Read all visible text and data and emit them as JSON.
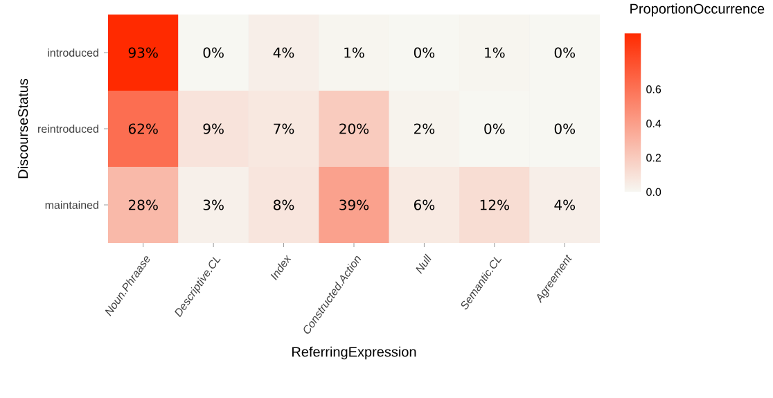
{
  "chart_data": {
    "type": "heatmap",
    "xlabel": "ReferringExpression",
    "ylabel": "DiscourseStatus",
    "clabel": "ProportionOccurrence",
    "categories": [
      "Noun.Phraase",
      "Descriptive.CL",
      "Index",
      "Constructed.Action",
      "Null",
      "Semantic.CL",
      "Agreement"
    ],
    "y_categories": [
      "introduced",
      "reintroduced",
      "maintained"
    ],
    "cells": [
      [
        0.93,
        0,
        0.04,
        0.01,
        0,
        0.01,
        0
      ],
      [
        0.62,
        0.09,
        0.07,
        0.2,
        0.02,
        0,
        0
      ],
      [
        0.28,
        0.03,
        0.08,
        0.39,
        0.06,
        0.12,
        0.04
      ]
    ],
    "cell_labels": [
      [
        "93%",
        "0%",
        "4%",
        "1%",
        "0%",
        "1%",
        "0%"
      ],
      [
        "62%",
        "9%",
        "7%",
        "20%",
        "2%",
        "0%",
        "0%"
      ],
      [
        "28%",
        "3%",
        "8%",
        "39%",
        "6%",
        "12%",
        "4%"
      ]
    ],
    "clim": [
      0,
      0.93
    ],
    "cticks": [
      {
        "value": 0,
        "label": "0.0"
      },
      0.2,
      0.4,
      0.6
    ]
  }
}
